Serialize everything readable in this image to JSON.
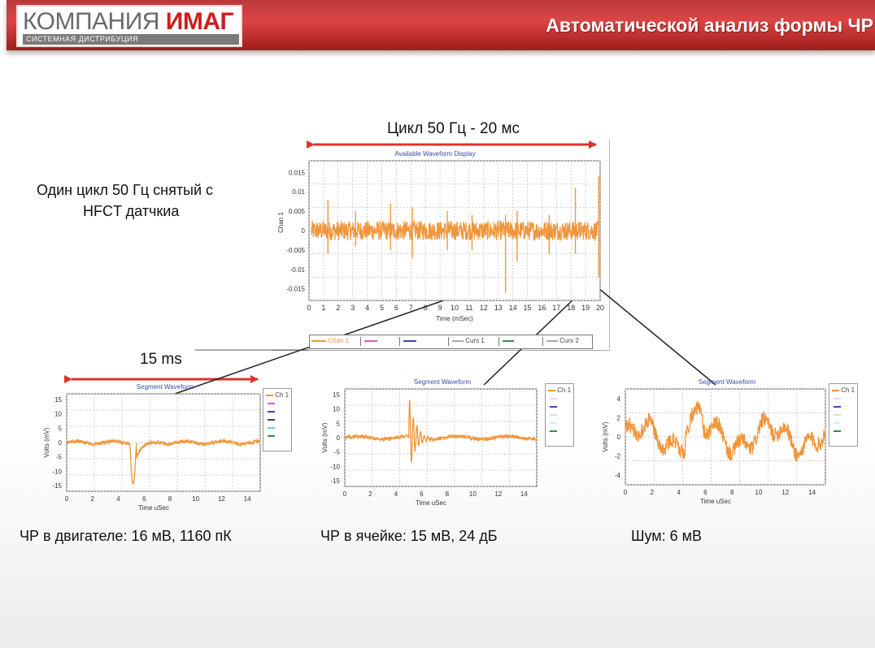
{
  "header": {
    "logo_main": "КОМПАНИЯ",
    "logo_accent": "ИМАГ",
    "logo_sub": "СИСТЕМНАЯ ДИСТРИБУЦИЯ",
    "title": "Автоматической анализ формы ЧР"
  },
  "labels": {
    "cycle": "Цикл 50 Гц - 20 мс",
    "one_cycle_line1": "Один цикл 50 Гц снятый с",
    "one_cycle_line2": "HFCT датчкиа",
    "ms15": "15 ms",
    "caption_motor": "ЧР в двигателе: 16 мВ, 1160 пК",
    "caption_cell": "ЧР в ячейке: 15 мВ, 24 дБ",
    "caption_noise": "Шум: 6 мВ"
  },
  "main_chart": {
    "title": "Available Waveform Display",
    "xlabel": "Time (mSec)",
    "ylabel": "Chan 1",
    "yticks": [
      "0.015",
      "0.01",
      "0.005",
      "0",
      "-0.005",
      "-0.01",
      "-0.015"
    ],
    "xticks": [
      "0",
      "1",
      "2",
      "3",
      "4",
      "5",
      "6",
      "7",
      "8",
      "9",
      "10",
      "11",
      "12",
      "13",
      "14",
      "15",
      "16",
      "17",
      "18",
      "19",
      "20"
    ],
    "legend": [
      "Chan 1",
      "",
      "",
      "Curs 1",
      "",
      "Curs 2"
    ]
  },
  "segments": [
    {
      "title": "Segment Waveform",
      "xlabel": "Time uSec",
      "ylabel": "Volts (mV)",
      "yticks": [
        "15",
        "10",
        "5",
        "0",
        "-5",
        "-10",
        "-15"
      ],
      "xticks": [
        "0",
        "2",
        "4",
        "6",
        "8",
        "10",
        "12",
        "14"
      ],
      "legend": "Ch 1"
    },
    {
      "title": "Segment Waveform",
      "xlabel": "Time uSec",
      "ylabel": "Volts (mV)",
      "yticks": [
        "15",
        "10",
        "5",
        "0",
        "-5",
        "-10",
        "-15"
      ],
      "xticks": [
        "0",
        "2",
        "4",
        "6",
        "8",
        "10",
        "12",
        "14"
      ],
      "legend": "Ch 1"
    },
    {
      "title": "Segment Waveform",
      "xlabel": "Time uSec",
      "ylabel": "Volts (mV)",
      "yticks": [
        "4",
        "2",
        "0",
        "-2",
        "-4"
      ],
      "xticks": [
        "0",
        "2",
        "4",
        "6",
        "8",
        "10",
        "12",
        "14"
      ],
      "legend": "Ch 1"
    }
  ],
  "colors": {
    "waveform": "#f0963a",
    "arrow": "#d9342b",
    "chart_title": "#3a4aa8",
    "header_red": "#c42a2a"
  }
}
